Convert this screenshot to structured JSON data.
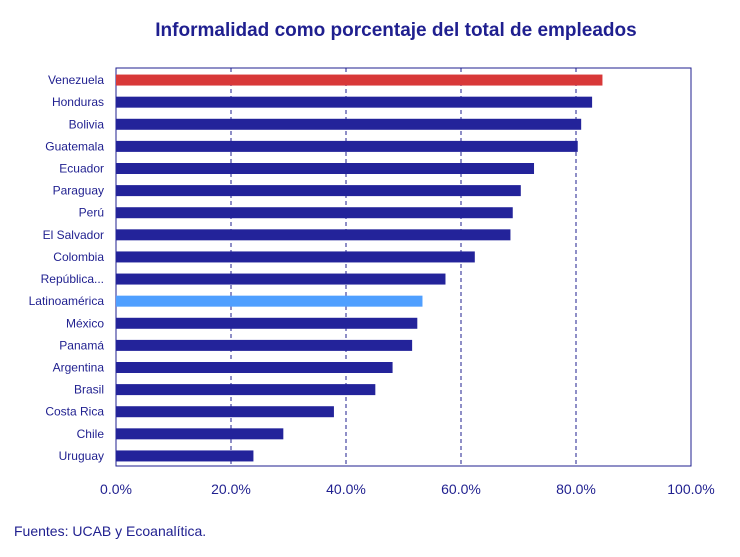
{
  "chart_data": {
    "type": "bar",
    "orientation": "horizontal",
    "title": "Informalidad como porcentaje del total de empleados",
    "categories": [
      "Venezuela",
      "Honduras",
      "Bolivia",
      "Guatemala",
      "Ecuador",
      "Paraguay",
      "Perú",
      "El Salvador",
      "Colombia",
      "República...",
      "Latinoamérica",
      "México",
      "Panamá",
      "Argentina",
      "Brasil",
      "Costa Rica",
      "Chile",
      "Uruguay"
    ],
    "values": [
      84.6,
      82.8,
      80.9,
      80.3,
      72.7,
      70.4,
      69.0,
      68.6,
      62.4,
      57.3,
      53.3,
      52.4,
      51.5,
      48.1,
      45.1,
      37.9,
      29.1,
      23.9
    ],
    "highlight": {
      "Venezuela": "#d83838",
      "Latinoamérica": "#4f9fff"
    },
    "bar_color": "#23239a",
    "xlim": [
      0,
      100
    ],
    "xticks": [
      "0.0%",
      "20.0%",
      "40.0%",
      "60.0%",
      "80.0%",
      "100.0%"
    ],
    "xlabel": "",
    "ylabel": "",
    "grid": "vertical dashed"
  },
  "source": "Fuentes: UCAB y Ecoanalítica."
}
